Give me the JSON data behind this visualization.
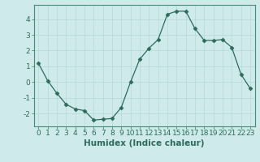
{
  "x": [
    0,
    1,
    2,
    3,
    4,
    5,
    6,
    7,
    8,
    9,
    10,
    11,
    12,
    13,
    14,
    15,
    16,
    17,
    18,
    19,
    20,
    21,
    22,
    23
  ],
  "y": [
    1.2,
    0.1,
    -0.7,
    -1.4,
    -1.7,
    -1.8,
    -2.4,
    -2.35,
    -2.3,
    -1.6,
    0.0,
    1.45,
    2.15,
    2.7,
    4.3,
    4.5,
    4.5,
    3.4,
    2.65,
    2.65,
    2.7,
    2.2,
    0.5,
    -0.4
  ],
  "line_color": "#2e6b5e",
  "marker": "D",
  "marker_size": 2.5,
  "bg_color": "#ceeaea",
  "grid_color": "#b8d8d8",
  "xlabel": "Humidex (Indice chaleur)",
  "xlim": [
    -0.5,
    23.5
  ],
  "ylim": [
    -2.8,
    4.9
  ],
  "yticks": [
    -2,
    -1,
    0,
    1,
    2,
    3,
    4
  ],
  "xticks": [
    0,
    1,
    2,
    3,
    4,
    5,
    6,
    7,
    8,
    9,
    10,
    11,
    12,
    13,
    14,
    15,
    16,
    17,
    18,
    19,
    20,
    21,
    22,
    23
  ],
  "xlabel_fontsize": 7.5,
  "tick_fontsize": 6.5,
  "axes_color": "#2e6b5e",
  "spine_color": "#4a8a7a"
}
